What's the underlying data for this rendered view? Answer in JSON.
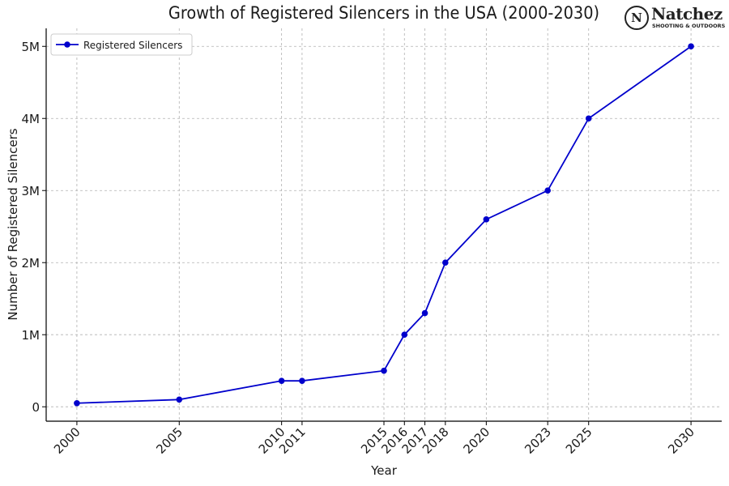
{
  "logo": {
    "mark": "N",
    "brand": "Natchez",
    "tagline": "SHOOTING & OUTDOORS"
  },
  "colors": {
    "series": "#0000cc",
    "grid": "#b0b0b0",
    "axis": "#000000"
  },
  "chart_data": {
    "type": "line",
    "title": "Growth of Registered Silencers in the USA (2000-2030)",
    "xlabel": "Year",
    "ylabel": "Number of Registered Silencers",
    "x": [
      2000,
      2005,
      2010,
      2011,
      2015,
      2016,
      2017,
      2018,
      2020,
      2023,
      2025,
      2030
    ],
    "xticks": [
      "2000",
      "2005",
      "2010",
      "2011",
      "2015",
      "2016",
      "2017",
      "2018",
      "2020",
      "2023",
      "2025",
      "2030"
    ],
    "yticks": [
      0,
      1000000,
      2000000,
      3000000,
      4000000,
      5000000
    ],
    "ytick_labels": [
      "0",
      "1M",
      "2M",
      "3M",
      "4M",
      "5M"
    ],
    "series": [
      {
        "name": "Registered Silencers",
        "values": [
          50000,
          100000,
          360000,
          360000,
          500000,
          1000000,
          1300000,
          2000000,
          2600000,
          3000000,
          4000000,
          5000000
        ]
      }
    ],
    "xlim": [
      1998.5,
      2031.5
    ],
    "ylim": [
      -200000,
      5250000
    ],
    "grid": true,
    "legend": "top-left"
  }
}
